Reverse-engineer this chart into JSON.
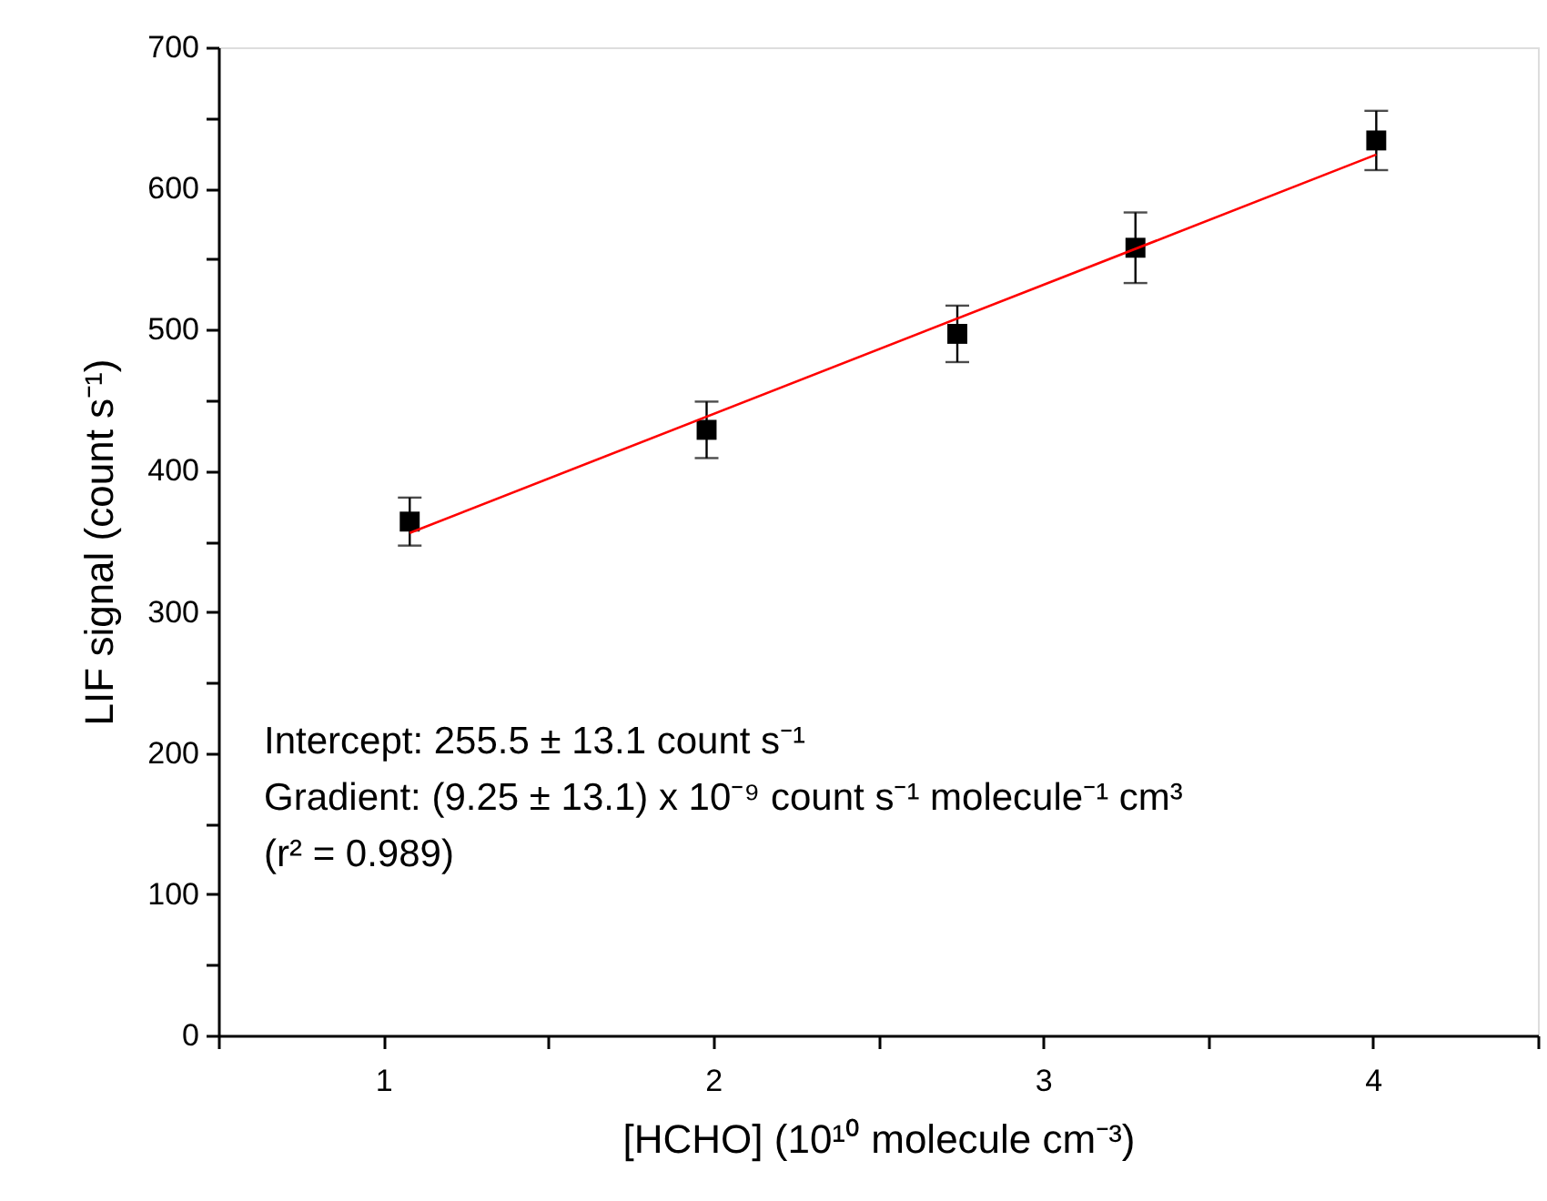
{
  "chart_data": {
    "type": "scatter",
    "xlabel": "[HCHO] (10¹⁰ molecule cm⁻³)",
    "ylabel": "LIF signal (count s⁻¹)",
    "xlim": [
      0.5,
      4.5
    ],
    "ylim": [
      0,
      700
    ],
    "xticks": [
      {
        "value": 0.5,
        "label": null
      },
      1,
      {
        "value": 1.5,
        "label": null
      },
      2,
      {
        "value": 2.5,
        "label": null
      },
      3,
      {
        "value": 3.5,
        "label": null
      },
      4,
      {
        "value": 4.5,
        "label": null
      }
    ],
    "yticks": [
      0,
      {
        "value": 50,
        "label": null
      },
      100,
      {
        "value": 150,
        "label": null
      },
      200,
      {
        "value": 250,
        "label": null
      },
      300,
      {
        "value": 350,
        "label": null
      },
      400,
      {
        "value": 450,
        "label": null
      },
      500,
      {
        "value": 550,
        "label": null
      },
      600,
      {
        "value": 650,
        "label": null
      },
      700
    ],
    "grid": false,
    "series": [
      {
        "marker": "square",
        "color": "#000000",
        "x": [
          1.08,
          1.98,
          2.74,
          3.28,
          4.01
        ],
        "values": [
          364,
          429,
          497,
          558,
          634
        ],
        "errors": [
          17,
          20,
          20,
          25,
          21
        ]
      },
      {
        "type": "line",
        "color": "#ff0000",
        "x": [
          1.08,
          4.01
        ],
        "values": [
          356,
          624
        ],
        "line_style": "solid"
      }
    ],
    "annotations": [
      "Intercept: 255.5 ± 13.1 count s⁻¹",
      "Gradient: (9.25 ± 13.1) x 10⁻⁹ count s⁻¹ molecule⁻¹ cm³",
      "(r² = 0.989)"
    ]
  }
}
